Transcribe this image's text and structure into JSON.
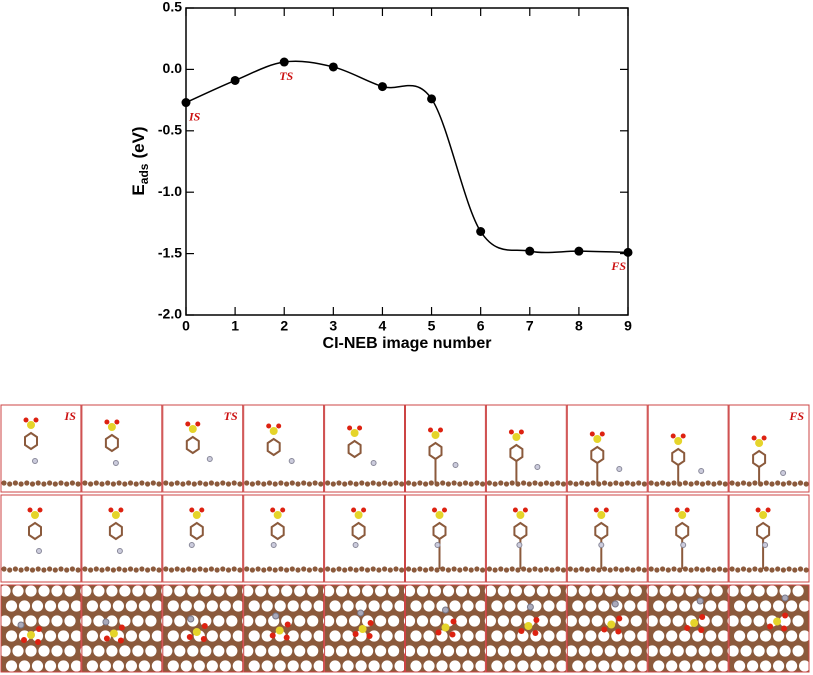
{
  "chart_data": {
    "type": "line",
    "xlabel": "CI-NEB image number",
    "ylabel": "E",
    "ylabel_sub": "ads",
    "ylabel_unit": "(eV)",
    "x": [
      0,
      1,
      2,
      3,
      4,
      5,
      6,
      7,
      8,
      9
    ],
    "series": [
      {
        "color": "#000000",
        "values": [
          -0.27,
          -0.09,
          0.06,
          0.02,
          -0.14,
          -0.24,
          -1.32,
          -1.48,
          -1.48,
          -1.49
        ]
      }
    ],
    "point_labels": [
      "IS",
      null,
      "TS",
      null,
      null,
      null,
      null,
      null,
      null,
      "FS"
    ],
    "point_label_color": "#cc1111",
    "xlim": [
      0,
      9
    ],
    "xticks": [
      0,
      1,
      2,
      3,
      4,
      5,
      6,
      7,
      8,
      9
    ],
    "ylim": [
      -2.0,
      0.5
    ],
    "yticks": [
      0.5,
      {
        "value": 0,
        "label": "0.0"
      },
      -0.5,
      {
        "value": -1,
        "label": "-1.0"
      },
      -1.5,
      {
        "value": -2,
        "label": "-2.0"
      }
    ],
    "grid": false
  }
}
